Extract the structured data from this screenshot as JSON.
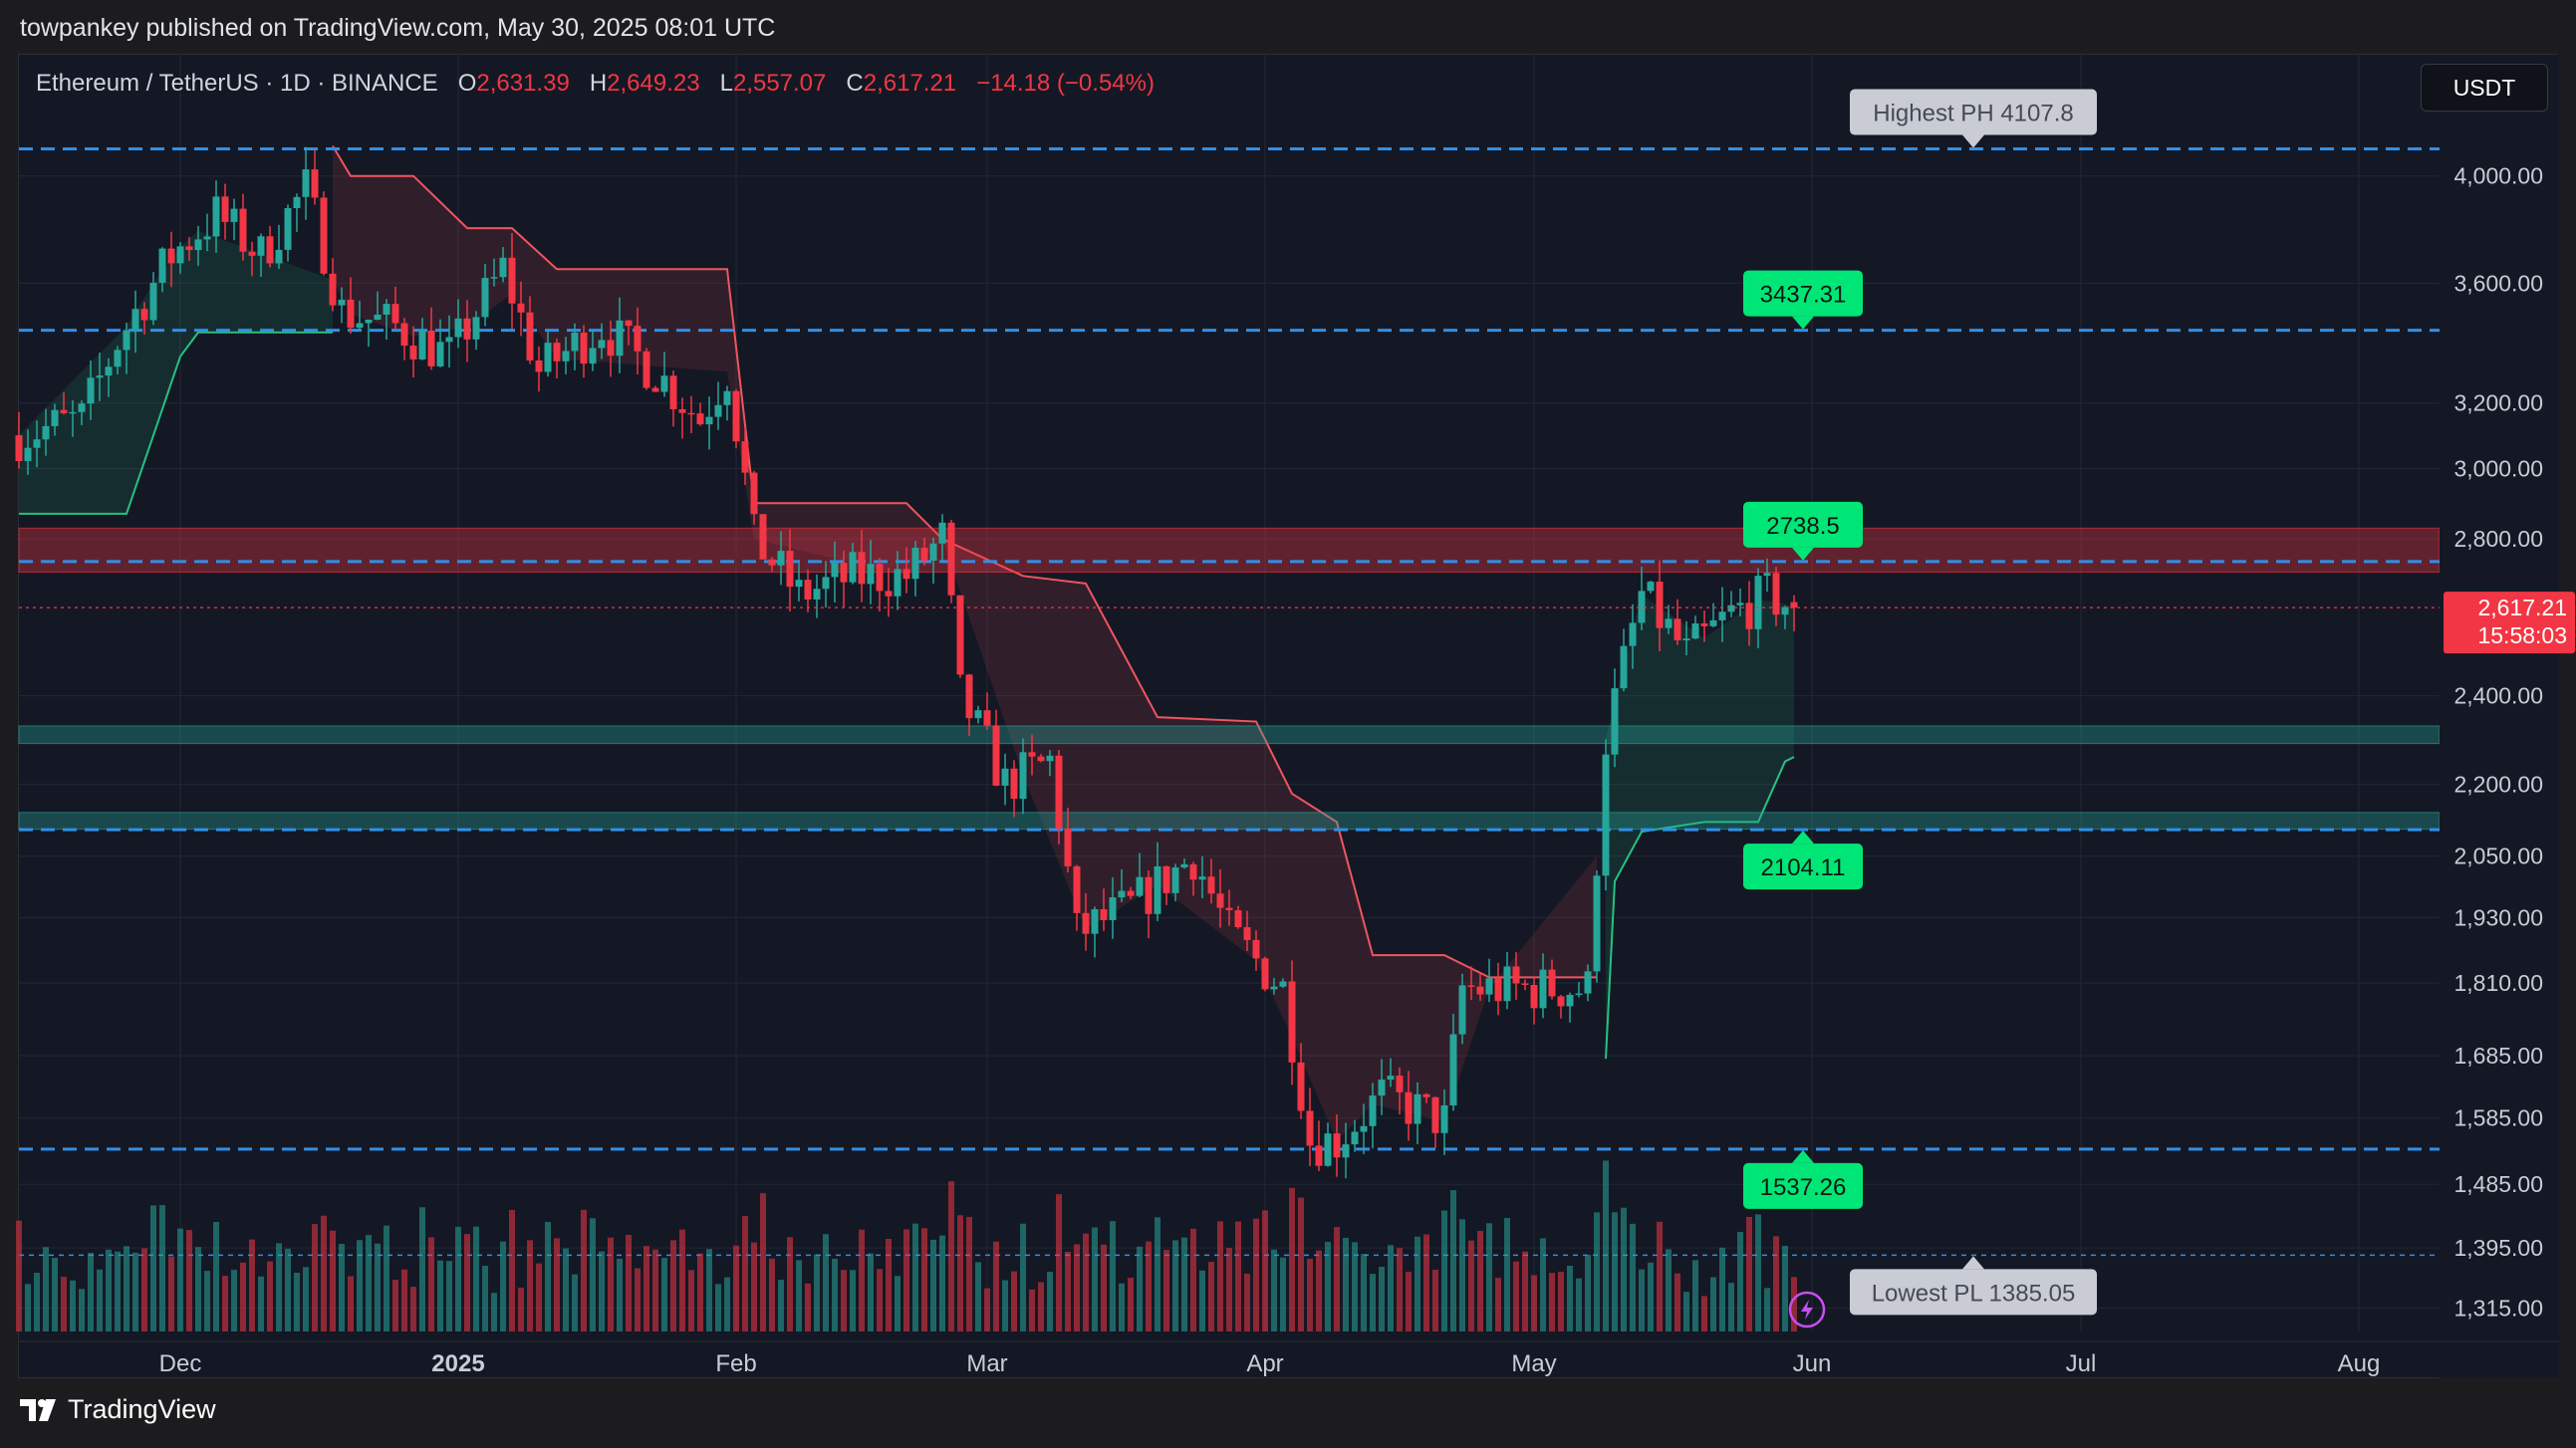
{
  "header": {
    "publisher_line": "towpankey published on TradingView.com, May 30, 2025 08:01 UTC"
  },
  "legend": {
    "symbol": "Ethereum / TetherUS · 1D · BINANCE",
    "o_label": "O",
    "o_value": "2,631.39",
    "h_label": "H",
    "h_value": "2,649.23",
    "l_label": "L",
    "l_value": "2,557.07",
    "c_label": "C",
    "c_value": "2,617.21",
    "change": "−14.18 (−0.54%)"
  },
  "currency_button": "USDT",
  "footer": {
    "brand": "TradingView"
  },
  "colors": {
    "background": "#141824",
    "up": "#26a69a",
    "down": "#f23645",
    "level_line": "#2f8fe8",
    "supertrend_up": "#26c281",
    "supertrend_down": "#f0555f",
    "label_green": "#00e676"
  },
  "chart_data": {
    "type": "candlestick",
    "symbol": "Ethereum / TetherUS",
    "interval": "1D",
    "exchange": "BINANCE",
    "y_scale": "log",
    "ylim": [
      1285,
      4350
    ],
    "x_range": [
      "2024-11-13",
      "2025-08-10"
    ],
    "y_ticks": [
      {
        "value": 4000,
        "label": "4,000.00"
      },
      {
        "value": 3600,
        "label": "3,600.00"
      },
      {
        "value": 3200,
        "label": "3,200.00"
      },
      {
        "value": 3000,
        "label": "3,000.00"
      },
      {
        "value": 2800,
        "label": "2,800.00"
      },
      {
        "value": 2400,
        "label": "2,400.00"
      },
      {
        "value": 2200,
        "label": "2,200.00"
      },
      {
        "value": 2050,
        "label": "2,050.00"
      },
      {
        "value": 1930,
        "label": "1,930.00"
      },
      {
        "value": 1810,
        "label": "1,810.00"
      },
      {
        "value": 1685,
        "label": "1,685.00"
      },
      {
        "value": 1585,
        "label": "1,585.00"
      },
      {
        "value": 1485,
        "label": "1,485.00"
      },
      {
        "value": 1395,
        "label": "1,395.00"
      },
      {
        "value": 1315,
        "label": "1,315.00"
      }
    ],
    "x_ticks": [
      {
        "date": "2024-12-01",
        "label": "Dec",
        "bold": false
      },
      {
        "date": "2025-01-01",
        "label": "2025",
        "bold": true
      },
      {
        "date": "2025-02-01",
        "label": "Feb",
        "bold": false
      },
      {
        "date": "2025-03-01",
        "label": "Mar",
        "bold": false
      },
      {
        "date": "2025-04-01",
        "label": "Apr",
        "bold": false
      },
      {
        "date": "2025-05-01",
        "label": "May",
        "bold": false
      },
      {
        "date": "2025-06-01",
        "label": "Jun",
        "bold": false
      },
      {
        "date": "2025-07-01",
        "label": "Jul",
        "bold": false
      },
      {
        "date": "2025-08-01",
        "label": "Aug",
        "bold": false
      }
    ],
    "price_path": [
      [
        "2024-11-13",
        3100
      ],
      [
        "2024-11-20",
        3150
      ],
      [
        "2024-11-24",
        3400
      ],
      [
        "2024-11-30",
        3700
      ],
      [
        "2024-12-05",
        3850
      ],
      [
        "2024-12-10",
        3700
      ],
      [
        "2024-12-15",
        3950
      ],
      [
        "2024-12-19",
        3500
      ],
      [
        "2024-12-25",
        3450
      ],
      [
        "2024-12-31",
        3350
      ],
      [
        "2025-01-06",
        3650
      ],
      [
        "2025-01-10",
        3300
      ],
      [
        "2025-01-17",
        3450
      ],
      [
        "2025-01-23",
        3300
      ],
      [
        "2025-01-28",
        3150
      ],
      [
        "2025-01-31",
        3300
      ],
      [
        "2025-02-03",
        2800
      ],
      [
        "2025-02-08",
        2650
      ],
      [
        "2025-02-14",
        2700
      ],
      [
        "2025-02-20",
        2700
      ],
      [
        "2025-02-24",
        2800
      ],
      [
        "2025-02-26",
        2400
      ],
      [
        "2025-03-03",
        2200
      ],
      [
        "2025-03-08",
        2250
      ],
      [
        "2025-03-11",
        1900
      ],
      [
        "2025-03-17",
        1950
      ],
      [
        "2025-03-24",
        2050
      ],
      [
        "2025-03-28",
        1900
      ],
      [
        "2025-04-03",
        1800
      ],
      [
        "2025-04-06",
        1550
      ],
      [
        "2025-04-09",
        1550
      ],
      [
        "2025-04-14",
        1620
      ],
      [
        "2025-04-21",
        1580
      ],
      [
        "2025-04-23",
        1800
      ],
      [
        "2025-04-30",
        1800
      ],
      [
        "2025-05-07",
        1800
      ],
      [
        "2025-05-09",
        2300
      ],
      [
        "2025-05-13",
        2650
      ],
      [
        "2025-05-18",
        2500
      ],
      [
        "2025-05-23",
        2600
      ],
      [
        "2025-05-27",
        2650
      ],
      [
        "2025-05-30",
        2617
      ]
    ],
    "last_candle": {
      "open": 2631.39,
      "high": 2649.23,
      "low": 2557.07,
      "close": 2617.21,
      "change": -14.18,
      "change_pct": -0.54
    },
    "supertrend_up_1": [
      [
        "2024-11-13",
        2870
      ],
      [
        "2024-11-25",
        2870
      ],
      [
        "2024-11-28",
        3100
      ],
      [
        "2024-12-01",
        3350
      ],
      [
        "2024-12-03",
        3430
      ],
      [
        "2024-12-18",
        3430
      ]
    ],
    "supertrend_down_1": [
      [
        "2024-12-18",
        4120
      ],
      [
        "2024-12-20",
        4000
      ],
      [
        "2024-12-27",
        4000
      ],
      [
        "2025-01-02",
        3800
      ],
      [
        "2025-01-07",
        3800
      ],
      [
        "2025-01-12",
        3650
      ],
      [
        "2025-01-31",
        3650
      ],
      [
        "2025-02-03",
        2900
      ],
      [
        "2025-02-20",
        2900
      ],
      [
        "2025-02-24",
        2800
      ],
      [
        "2025-03-05",
        2700
      ],
      [
        "2025-03-12",
        2680
      ],
      [
        "2025-03-20",
        2350
      ],
      [
        "2025-03-31",
        2340
      ],
      [
        "2025-04-04",
        2180
      ],
      [
        "2025-04-09",
        2120
      ],
      [
        "2025-04-13",
        1860
      ],
      [
        "2025-04-21",
        1860
      ],
      [
        "2025-04-26",
        1820
      ],
      [
        "2025-05-08",
        1820
      ]
    ],
    "supertrend_up_2": [
      [
        "2025-05-09",
        1680
      ],
      [
        "2025-05-10",
        2000
      ],
      [
        "2025-05-13",
        2100
      ],
      [
        "2025-05-20",
        2120
      ],
      [
        "2025-05-26",
        2120
      ],
      [
        "2025-05-29",
        2250
      ],
      [
        "2025-05-30",
        2260
      ]
    ],
    "zones": [
      {
        "name": "resistance",
        "low": 2710,
        "high": 2830,
        "color": "#f23645"
      },
      {
        "name": "support-upper",
        "low": 2290,
        "high": 2330,
        "color": "#26a69a"
      },
      {
        "name": "support-lower",
        "low": 2105,
        "high": 2140,
        "color": "#26a69a"
      }
    ],
    "levels": [
      {
        "value": 4107.8,
        "style": "dashed"
      },
      {
        "value": 3437.31,
        "style": "dashed"
      },
      {
        "value": 2738.5,
        "style": "dashed"
      },
      {
        "value": 2104.11,
        "style": "dashed"
      },
      {
        "value": 1537.26,
        "style": "dashed"
      },
      {
        "value": 1385.05,
        "style": "thin-dashed"
      }
    ],
    "annotations": [
      {
        "text": "Highest PH 4107.8",
        "value": 4107.8,
        "date": "2025-06-19",
        "style": "gray",
        "pointer": "down"
      },
      {
        "text": "3437.31",
        "value": 3437.31,
        "date": "2025-05-31",
        "style": "green",
        "pointer": "down"
      },
      {
        "text": "2738.5",
        "value": 2738.5,
        "date": "2025-05-31",
        "style": "green",
        "pointer": "down"
      },
      {
        "text": "2104.11",
        "value": 2104.11,
        "date": "2025-05-31",
        "style": "green",
        "pointer": "up"
      },
      {
        "text": "1537.26",
        "value": 1537.26,
        "date": "2025-05-31",
        "style": "green",
        "pointer": "up"
      },
      {
        "text": "Lowest PL 1385.05",
        "value": 1385.05,
        "date": "2025-06-19",
        "style": "gray",
        "pointer": "up"
      }
    ],
    "current_price": {
      "value": 2617.21,
      "label": "2,617.21",
      "countdown": "15:58:03"
    }
  }
}
